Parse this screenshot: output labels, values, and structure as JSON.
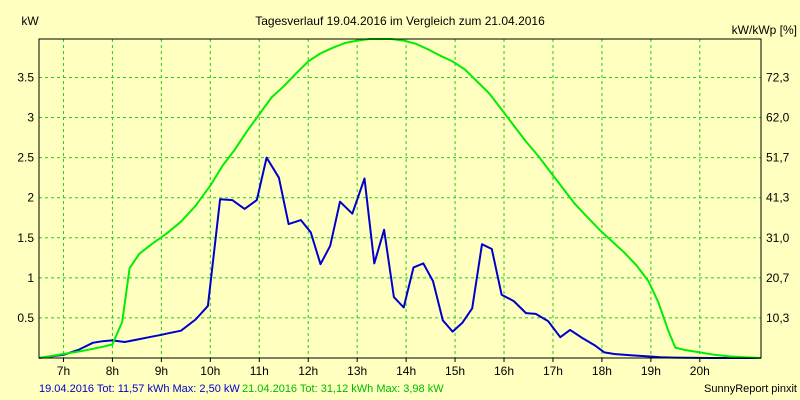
{
  "chart_data": {
    "type": "line",
    "title": "Tagesverlauf 19.04.2016 im Vergleich zum 21.04.2016",
    "y_left_label": "kW",
    "y_right_label": "kW/kWp [%]",
    "x_ticks": [
      "7h",
      "8h",
      "9h",
      "10h",
      "11h",
      "12h",
      "13h",
      "14h",
      "15h",
      "16h",
      "17h",
      "18h",
      "19h",
      "20h"
    ],
    "y_left_ticks": [
      "0.5",
      "1",
      "1.5",
      "2",
      "2.5",
      "3",
      "3.5"
    ],
    "y_right_ticks": [
      "10,3",
      "20,7",
      "31,0",
      "41,3",
      "51,7",
      "62,0",
      "72,3"
    ],
    "xlim": [
      6.5,
      21.25
    ],
    "ylim": [
      0,
      3.98
    ],
    "grid": true,
    "series": [
      {
        "name": "19.04.2016",
        "color": "#0000cc",
        "x": [
          6.5,
          7.0,
          7.3,
          7.6,
          7.8,
          8.0,
          8.25,
          8.5,
          8.75,
          9.0,
          9.15,
          9.4,
          9.7,
          9.95,
          10.2,
          10.45,
          10.7,
          10.95,
          11.15,
          11.4,
          11.6,
          11.85,
          12.05,
          12.25,
          12.45,
          12.65,
          12.9,
          13.15,
          13.35,
          13.55,
          13.75,
          13.95,
          14.15,
          14.35,
          14.55,
          14.75,
          14.95,
          15.15,
          15.35,
          15.55,
          15.75,
          15.95,
          16.2,
          16.45,
          16.65,
          16.9,
          17.15,
          17.35,
          17.6,
          17.85,
          18.05,
          18.25,
          18.45,
          18.7,
          18.95,
          19.2,
          19.45,
          19.7,
          19.95,
          20.2,
          20.5,
          20.8,
          21.25
        ],
        "y": [
          0.0,
          0.04,
          0.1,
          0.19,
          0.21,
          0.22,
          0.2,
          0.23,
          0.26,
          0.29,
          0.31,
          0.34,
          0.48,
          0.65,
          1.98,
          1.97,
          1.86,
          1.97,
          2.5,
          2.25,
          1.67,
          1.72,
          1.57,
          1.17,
          1.4,
          1.95,
          1.8,
          2.24,
          1.18,
          1.6,
          0.76,
          0.63,
          1.13,
          1.18,
          0.96,
          0.47,
          0.33,
          0.44,
          0.62,
          1.42,
          1.36,
          0.79,
          0.71,
          0.56,
          0.55,
          0.46,
          0.26,
          0.35,
          0.25,
          0.16,
          0.07,
          0.05,
          0.04,
          0.03,
          0.02,
          0.01,
          0.005,
          0.002,
          0.001,
          0.0005,
          0.0002,
          0.0001,
          0.0
        ]
      },
      {
        "name": "21.04.2016",
        "color": "#00ee00",
        "x": [
          6.5,
          7.0,
          7.4,
          7.8,
          8.0,
          8.2,
          8.35,
          8.55,
          8.8,
          9.1,
          9.4,
          9.7,
          10.0,
          10.25,
          10.5,
          10.75,
          11.0,
          11.25,
          11.5,
          11.75,
          12.0,
          12.25,
          12.5,
          12.75,
          13.0,
          13.25,
          13.45,
          13.7,
          13.95,
          14.2,
          14.45,
          14.7,
          14.95,
          15.2,
          15.45,
          15.7,
          15.95,
          16.2,
          16.45,
          16.7,
          16.95,
          17.2,
          17.45,
          17.7,
          17.95,
          18.2,
          18.45,
          18.7,
          18.95,
          19.15,
          19.35,
          19.5,
          19.7,
          20.0,
          20.3,
          20.6,
          20.9,
          21.25
        ],
        "y": [
          0.0,
          0.05,
          0.09,
          0.14,
          0.17,
          0.45,
          1.12,
          1.3,
          1.42,
          1.55,
          1.7,
          1.9,
          2.15,
          2.4,
          2.6,
          2.83,
          3.04,
          3.25,
          3.39,
          3.55,
          3.7,
          3.8,
          3.87,
          3.93,
          3.96,
          3.98,
          3.98,
          3.98,
          3.96,
          3.92,
          3.85,
          3.77,
          3.7,
          3.6,
          3.45,
          3.3,
          3.1,
          2.9,
          2.7,
          2.52,
          2.32,
          2.12,
          1.92,
          1.76,
          1.6,
          1.46,
          1.32,
          1.16,
          0.96,
          0.7,
          0.35,
          0.13,
          0.1,
          0.07,
          0.04,
          0.02,
          0.01,
          0.0
        ]
      }
    ]
  },
  "footer": {
    "series1_text": "19.04.2016 Tot: 11,57 kWh Max: 2,50 kW",
    "series2_text": "21.04.2016 Tot: 31,12 kWh Max: 3,98 kW",
    "credit": "SunnyReport pinxit"
  },
  "colors": {
    "background": "#ffffc0",
    "grid": "#22cc22"
  }
}
